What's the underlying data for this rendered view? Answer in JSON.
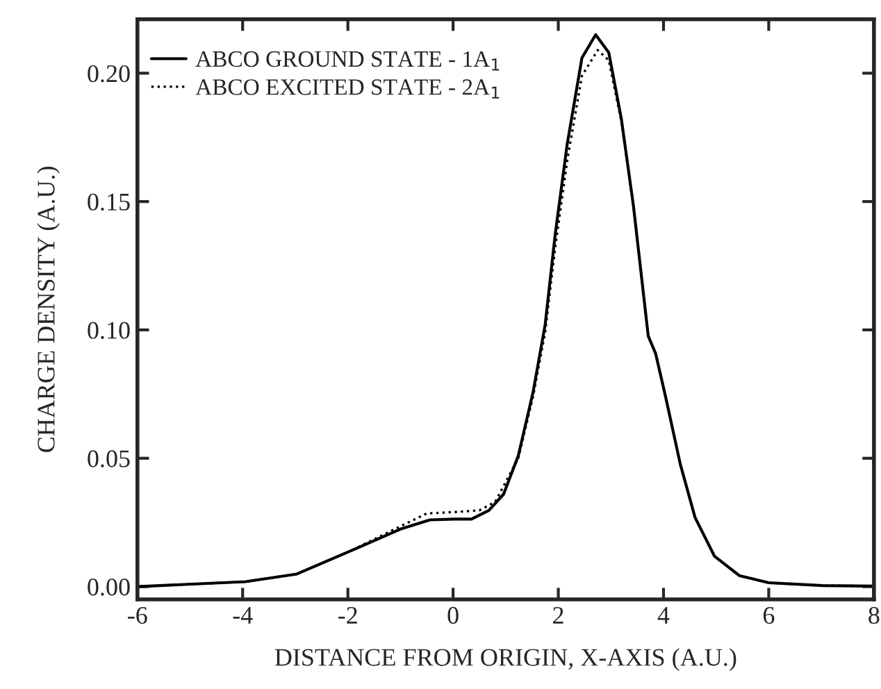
{
  "chart_data": {
    "type": "line",
    "xlabel": "DISTANCE FROM ORIGIN, X-AXIS (A.U.)",
    "ylabel": "CHARGE DENSITY (A.U.)",
    "xlim": [
      -6,
      8
    ],
    "xticks": [
      -6,
      -4,
      -2,
      0,
      2,
      4,
      6,
      8
    ],
    "ylim": [
      -0.005,
      0.221
    ],
    "yticks": [
      {
        "value": 0,
        "label": "0.00"
      },
      {
        "value": 0.05,
        "label": "0.05"
      },
      {
        "value": 0.1,
        "label": "0.10"
      },
      {
        "value": 0.15,
        "label": "0.15"
      },
      {
        "value": 0.2,
        "label": "0.20"
      }
    ],
    "grid": false,
    "legend": "top left",
    "marker": "none",
    "series": [
      {
        "name": "ABCO GROUND STATE - 1A$_{1}$",
        "color": "#000000",
        "line_style": "solid",
        "x": [
          -6,
          -3.95,
          -2.97,
          -1.97,
          -1.0,
          -0.44,
          0.02,
          0.35,
          0.68,
          0.96,
          1.24,
          1.52,
          1.75,
          1.94,
          2.17,
          2.45,
          2.71,
          2.96,
          3.2,
          3.43,
          3.71,
          3.85,
          4.04,
          4.32,
          4.6,
          4.97,
          5.44,
          6.0,
          7.03,
          8
        ],
        "values": [
          0.0,
          0.0019,
          0.0049,
          0.0137,
          0.0224,
          0.026,
          0.0263,
          0.0263,
          0.0297,
          0.036,
          0.051,
          0.0757,
          0.102,
          0.137,
          0.1725,
          0.206,
          0.215,
          0.208,
          0.182,
          0.148,
          0.0976,
          0.0908,
          0.0739,
          0.0476,
          0.0269,
          0.0118,
          0.0043,
          0.0015,
          0.0004,
          0.0002
        ]
      },
      {
        "name": "ABCO EXCITED STATE - 2A$_{1}$",
        "color": "#000000",
        "line_style": "dotted",
        "x": [
          -6,
          -3.95,
          -2.97,
          -1.97,
          -1.0,
          -0.5,
          0.0,
          0.5,
          0.8,
          1.24,
          1.52,
          1.75,
          1.94,
          2.17,
          2.45,
          2.75,
          2.96,
          3.2,
          3.43,
          3.71,
          3.85,
          4.04,
          4.32,
          4.6,
          4.97,
          5.44,
          6.0,
          7.03,
          8
        ],
        "values": [
          0.0,
          0.0019,
          0.0049,
          0.0137,
          0.0235,
          0.0285,
          0.029,
          0.0297,
          0.033,
          0.05,
          0.074,
          0.099,
          0.132,
          0.166,
          0.199,
          0.209,
          0.205,
          0.181,
          0.148,
          0.0976,
          0.0908,
          0.0739,
          0.0476,
          0.0269,
          0.0118,
          0.0043,
          0.0015,
          0.0004,
          0.0002
        ]
      }
    ]
  }
}
